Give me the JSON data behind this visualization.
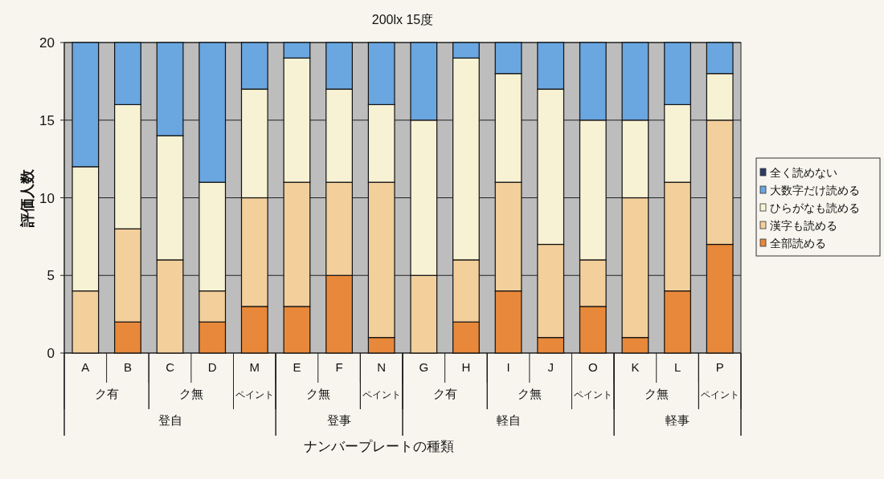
{
  "chart_data": {
    "type": "bar",
    "stacked": true,
    "title": "200lx  15度",
    "xlabel": "ナンバープレートの種類",
    "ylabel": "評価人数",
    "categories": [
      "A",
      "B",
      "C",
      "D",
      "M",
      "E",
      "F",
      "N",
      "G",
      "H",
      "I",
      "J",
      "O",
      "K",
      "L",
      "P"
    ],
    "series": [
      {
        "name": "全部読める",
        "color": "#e8883a",
        "values": [
          0,
          2,
          0,
          2,
          3,
          3,
          5,
          1,
          0,
          2,
          4,
          1,
          3,
          1,
          4,
          7
        ]
      },
      {
        "name": "漢字も読める",
        "color": "#f3cf9c",
        "values": [
          4,
          6,
          6,
          2,
          7,
          8,
          6,
          10,
          5,
          4,
          7,
          6,
          3,
          9,
          7,
          8
        ]
      },
      {
        "name": "ひらがなも読める",
        "color": "#f8f2d4",
        "values": [
          8,
          8,
          8,
          7,
          7,
          8,
          6,
          5,
          10,
          13,
          7,
          10,
          9,
          5,
          5,
          3
        ]
      },
      {
        "name": "大数字だけ読める",
        "color": "#6aa6e0",
        "values": [
          8,
          4,
          6,
          9,
          3,
          1,
          3,
          4,
          5,
          1,
          2,
          3,
          5,
          5,
          4,
          2
        ]
      },
      {
        "name": "全く読めない",
        "color": "#2e3a66",
        "values": [
          0,
          0,
          0,
          0,
          0,
          0,
          0,
          0,
          0,
          0,
          0,
          0,
          0,
          0,
          0,
          0
        ]
      }
    ],
    "ylim": [
      0,
      20
    ],
    "yticks": [
      0,
      5,
      10,
      15,
      20
    ],
    "grid": "y",
    "legend": "right",
    "annotations": [
      "ク有",
      "ク無",
      "ペイント",
      "ク無",
      "ペイント",
      "ク有",
      "ク無",
      "ペイント",
      "ク無",
      "ペイント",
      "登自",
      "登事",
      "軽自",
      "軽事"
    ]
  }
}
